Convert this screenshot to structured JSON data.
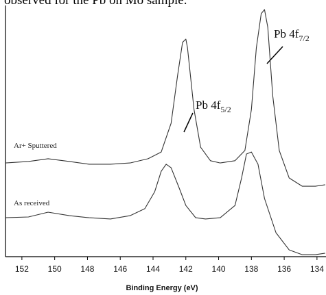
{
  "page_text": "observed for the Pb on Mo sample.",
  "chart_data": {
    "type": "line",
    "x_label": "Binding Energy (eV)",
    "xlim": [
      153,
      133.45
    ],
    "xticks": [
      152,
      150,
      148,
      146,
      144,
      142,
      140,
      138,
      136,
      134
    ],
    "ylim": [
      0,
      100
    ],
    "series": [
      {
        "name": "Ar+ Sputtered",
        "color": "#333333",
        "x": [
          153,
          151.6,
          150.4,
          149.1,
          147.9,
          146.6,
          145.4,
          144.3,
          143.5,
          142.9,
          142.5,
          142.2,
          142.0,
          141.9,
          141.5,
          141.1,
          140.5,
          139.9,
          139.0,
          138.4,
          138.0,
          137.7,
          137.4,
          137.2,
          137.0,
          136.7,
          136.3,
          135.7,
          134.9,
          134.1,
          133.5
        ],
        "values": [
          37.5,
          38.1,
          39.2,
          38.1,
          37.0,
          37.0,
          37.5,
          39.2,
          41.9,
          53.4,
          72.6,
          85.8,
          87.1,
          83.6,
          58.9,
          43.8,
          38.4,
          37.5,
          38.4,
          42.5,
          58.9,
          83.6,
          97.3,
          98.9,
          91.8,
          64.4,
          42.5,
          31.5,
          28.2,
          28.2,
          28.8
        ]
      },
      {
        "name": "As received",
        "color": "#333333",
        "x": [
          153,
          151.6,
          150.4,
          149.1,
          147.9,
          146.6,
          145.4,
          144.5,
          143.9,
          143.5,
          143.2,
          142.9,
          142.4,
          142.0,
          141.4,
          140.8,
          139.9,
          139.0,
          138.6,
          138.3,
          138.0,
          137.6,
          137.2,
          136.5,
          135.7,
          134.9,
          134.1,
          133.5
        ],
        "values": [
          15.6,
          15.9,
          17.8,
          16.4,
          15.6,
          15.1,
          16.4,
          19.2,
          26.0,
          34.2,
          37.0,
          35.6,
          27.4,
          20.5,
          15.6,
          15.1,
          15.6,
          20.5,
          31.5,
          41.1,
          41.9,
          37.0,
          23.3,
          9.6,
          2.7,
          0.8,
          0.8,
          1.4
        ]
      }
    ],
    "annotations": [
      {
        "text": "Pb 4f",
        "subscript": "5/2"
      },
      {
        "text": "Pb 4f",
        "subscript": "7/2"
      }
    ]
  }
}
